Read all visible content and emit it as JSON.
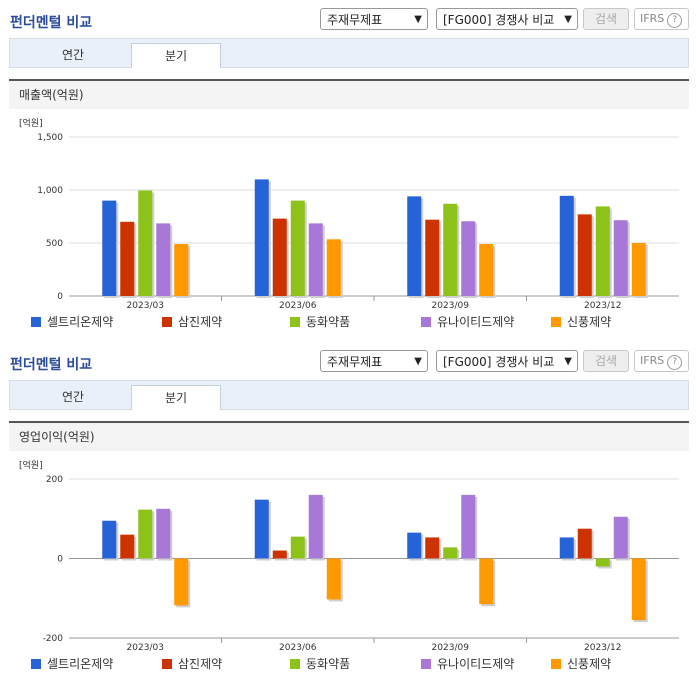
{
  "header": {
    "title": "펀더멘털 비교",
    "select1": "주재무제표",
    "select2": "[FG000] 경쟁사 비교",
    "search": "검색",
    "ifrs": "IFRS",
    "help": "?"
  },
  "tabs": [
    "연간",
    "분기"
  ],
  "active_tab": "분기",
  "colors": [
    "#2563d6",
    "#cc3300",
    "#8cc21a",
    "#a878d8",
    "#ff9900"
  ],
  "chart_data": [
    {
      "type": "bar",
      "title": "매출액(억원)",
      "unit": "[억원]",
      "categories": [
        "2023/03",
        "2023/06",
        "2023/09",
        "2023/12"
      ],
      "series": [
        {
          "name": "셀트리온제약",
          "values": [
            900,
            1100,
            940,
            945
          ]
        },
        {
          "name": "삼진제약",
          "values": [
            700,
            730,
            720,
            770
          ]
        },
        {
          "name": "동화약품",
          "values": [
            995,
            900,
            870,
            845
          ]
        },
        {
          "name": "유나이티드제약",
          "values": [
            685,
            685,
            705,
            715
          ]
        },
        {
          "name": "신풍제약",
          "values": [
            490,
            535,
            490,
            500
          ]
        }
      ],
      "ylim": [
        0,
        1500
      ],
      "yticks": [
        "0",
        "500",
        "1,000",
        "1,500"
      ]
    },
    {
      "type": "bar",
      "title": "영업이익(억원)",
      "unit": "[억원]",
      "categories": [
        "2023/03",
        "2023/06",
        "2023/09",
        "2023/12"
      ],
      "series": [
        {
          "name": "셀트리온제약",
          "values": [
            95,
            148,
            65,
            53
          ]
        },
        {
          "name": "삼진제약",
          "values": [
            60,
            20,
            53,
            75
          ]
        },
        {
          "name": "동화약품",
          "values": [
            123,
            55,
            28,
            -20
          ]
        },
        {
          "name": "유나이티드제약",
          "values": [
            125,
            160,
            160,
            105
          ]
        },
        {
          "name": "신풍제약",
          "values": [
            -118,
            -103,
            -115,
            -155
          ]
        }
      ],
      "ylim": [
        -200,
        200
      ],
      "yticks": [
        "-200",
        "0",
        "200"
      ]
    }
  ]
}
